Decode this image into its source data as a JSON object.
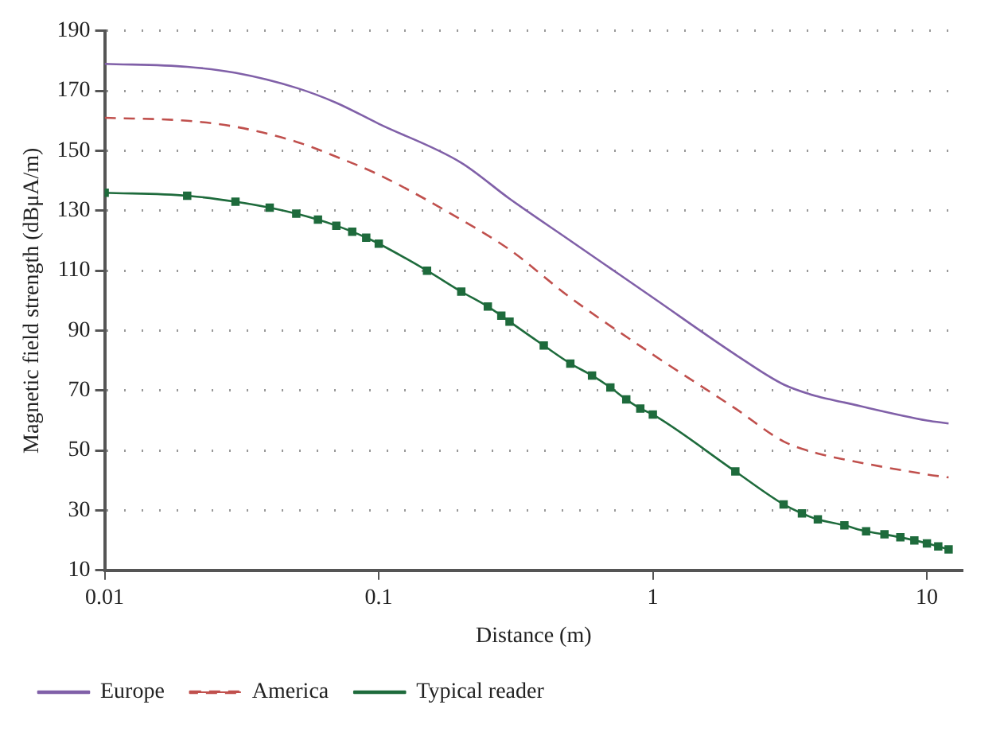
{
  "chart_data": {
    "type": "line",
    "xlabel": "Distance (m)",
    "ylabel": "Magnetic field strength (dBμA/m)",
    "log": "x",
    "xlim": [
      0.01,
      13.5
    ],
    "xticks": [
      0.01,
      0.1,
      1,
      10
    ],
    "ylim": [
      10,
      190
    ],
    "yticks": [
      10,
      30,
      50,
      70,
      90,
      110,
      130,
      150,
      170,
      190
    ],
    "grid": "y",
    "legend": "bottom left",
    "series": [
      {
        "name": "Europe",
        "color": "#8060a8",
        "line_style": "solid",
        "marker": "none",
        "x": [
          0.01,
          0.02,
          0.03,
          0.05,
          0.07,
          0.1,
          0.2,
          0.3,
          0.5,
          1,
          2,
          3,
          4,
          5,
          10,
          12
        ],
        "values": [
          179,
          178,
          176,
          171,
          166,
          159,
          146,
          134,
          120,
          101,
          82,
          72,
          68,
          66,
          60,
          59
        ]
      },
      {
        "name": "America",
        "color": "#c0504d",
        "line_style": "dashed",
        "marker": "none",
        "x": [
          0.01,
          0.02,
          0.03,
          0.05,
          0.07,
          0.1,
          0.2,
          0.3,
          0.5,
          1,
          2,
          3,
          4,
          5,
          10,
          12
        ],
        "values": [
          161,
          160,
          158,
          153,
          148,
          142,
          127,
          117,
          101,
          82,
          64,
          53,
          49,
          47,
          42,
          41
        ]
      },
      {
        "name": "Typical reader",
        "color": "#1e6b3c",
        "line_style": "solid",
        "marker": "square",
        "x": [
          0.01,
          0.02,
          0.03,
          0.04,
          0.05,
          0.06,
          0.07,
          0.08,
          0.09,
          0.1,
          0.15,
          0.2,
          0.25,
          0.28,
          0.3,
          0.4,
          0.5,
          0.6,
          0.7,
          0.8,
          0.9,
          1,
          2,
          3,
          3.5,
          4,
          5,
          6,
          7,
          8,
          9,
          10,
          11,
          12
        ],
        "values": [
          136,
          135,
          133,
          131,
          129,
          127,
          125,
          123,
          121,
          119,
          110,
          103,
          98,
          95,
          93,
          85,
          79,
          75,
          71,
          67,
          64,
          62,
          43,
          32,
          29,
          27,
          25,
          23,
          22,
          21,
          20,
          19,
          18,
          17
        ]
      }
    ]
  }
}
